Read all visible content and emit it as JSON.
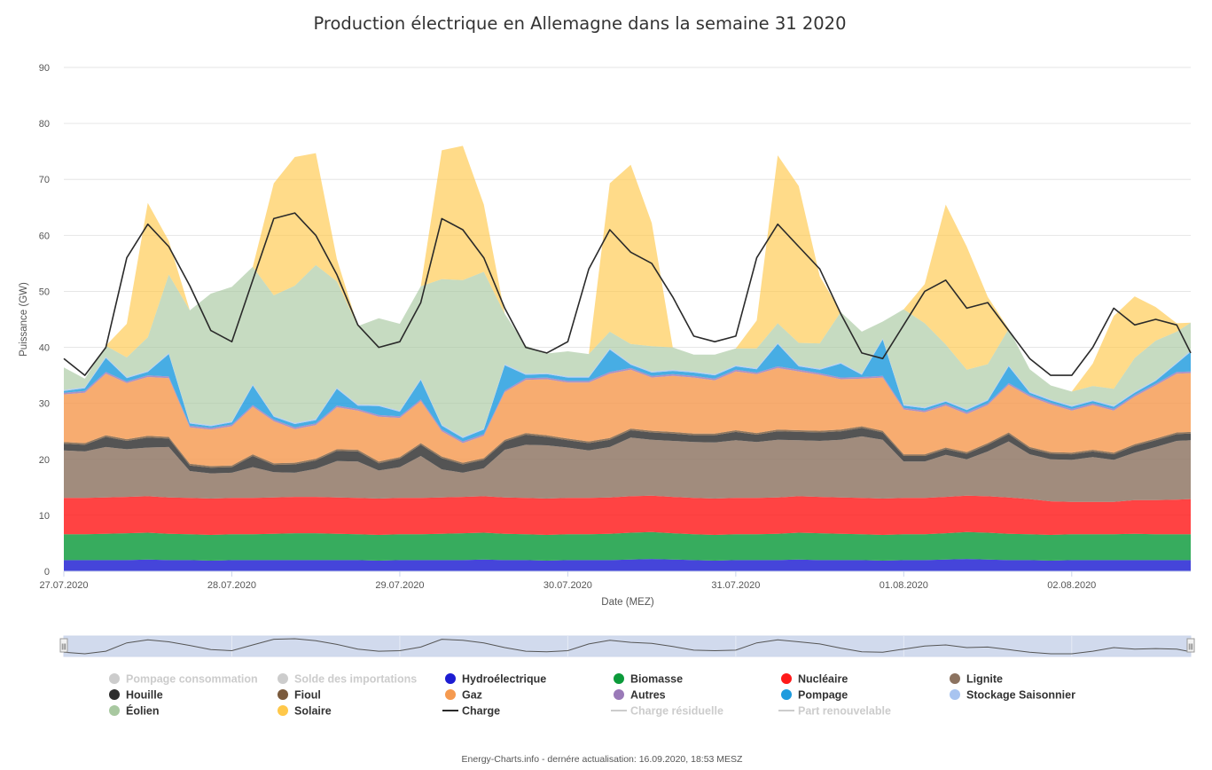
{
  "colors": {
    "pompage_consommation": "#c6c6c6",
    "solde_importations": "#c6c6c6",
    "hydro": "#1c1cd2",
    "biomasse": "#0b9a3a",
    "nucleaire": "#ff1a1a",
    "lignite": "#8c7360",
    "houille": "#2e2e2e",
    "fioul": "#7a5a3c",
    "gaz": "#f59a50",
    "autres": "#9a7ab8",
    "pompage": "#1e9bde",
    "stockage": "#a8c4f0",
    "eolien": "#a8c8a0",
    "solaire": "#ffc84a",
    "charge": "#2a2a2a",
    "disabled": "#cccccc"
  },
  "chart_data": {
    "type": "area",
    "title": "Production électrique en Allemagne dans la semaine 31 2020",
    "xlabel": "Date (MEZ)",
    "ylabel": "Puissance (GW)",
    "ylim": [
      0,
      90
    ],
    "yticks": [
      "0",
      "10",
      "20",
      "30",
      "40",
      "50",
      "60",
      "70",
      "80",
      "90"
    ],
    "xticks": [
      "27.07.2020",
      "28.07.2020",
      "29.07.2020",
      "30.07.2020",
      "31.07.2020",
      "01.08.2020",
      "02.08.2020"
    ],
    "x_hours": [
      0,
      3,
      6,
      9,
      12,
      15,
      18,
      21,
      24,
      27,
      30,
      33,
      36,
      39,
      42,
      45,
      48,
      51,
      54,
      57,
      60,
      63,
      66,
      69,
      72,
      75,
      78,
      81,
      84,
      87,
      90,
      93,
      96,
      99,
      102,
      105,
      108,
      111,
      114,
      117,
      120,
      123,
      126,
      129,
      132,
      135,
      138,
      141,
      144,
      147,
      150,
      153,
      156,
      159,
      161
    ],
    "stacked_series": [
      {
        "name": "Hydroélectrique",
        "color_key": "hydro",
        "values": [
          2.0,
          2.0,
          2.0,
          2.0,
          2.1,
          2.0,
          2.0,
          1.9,
          2.0,
          2.0,
          2.0,
          2.0,
          2.0,
          2.0,
          2.0,
          1.9,
          2.0,
          2.0,
          2.0,
          2.0,
          2.1,
          2.0,
          2.0,
          1.9,
          2.0,
          2.0,
          2.0,
          2.1,
          2.2,
          2.1,
          2.0,
          1.9,
          2.0,
          2.0,
          2.0,
          2.1,
          2.0,
          2.0,
          2.0,
          1.9,
          2.0,
          2.0,
          2.1,
          2.2,
          2.1,
          2.0,
          2.0,
          1.9,
          2.0,
          2.0,
          2.0,
          2.0,
          2.0,
          2.0,
          2.0
        ]
      },
      {
        "name": "Biomasse",
        "color_key": "biomasse",
        "values": [
          4.6,
          4.6,
          4.7,
          4.8,
          4.8,
          4.7,
          4.6,
          4.6,
          4.6,
          4.6,
          4.7,
          4.8,
          4.8,
          4.7,
          4.6,
          4.6,
          4.6,
          4.6,
          4.7,
          4.8,
          4.8,
          4.7,
          4.6,
          4.6,
          4.6,
          4.6,
          4.7,
          4.8,
          4.8,
          4.7,
          4.6,
          4.6,
          4.6,
          4.6,
          4.7,
          4.8,
          4.8,
          4.7,
          4.6,
          4.6,
          4.6,
          4.6,
          4.7,
          4.8,
          4.8,
          4.7,
          4.6,
          4.6,
          4.6,
          4.6,
          4.6,
          4.7,
          4.6,
          4.6,
          4.6
        ]
      },
      {
        "name": "Nucléaire",
        "color_key": "nucleaire",
        "values": [
          6.5,
          6.5,
          6.5,
          6.5,
          6.5,
          6.5,
          6.5,
          6.5,
          6.5,
          6.5,
          6.5,
          6.5,
          6.5,
          6.5,
          6.5,
          6.5,
          6.5,
          6.5,
          6.5,
          6.5,
          6.5,
          6.5,
          6.5,
          6.5,
          6.5,
          6.5,
          6.5,
          6.5,
          6.5,
          6.5,
          6.5,
          6.5,
          6.5,
          6.5,
          6.5,
          6.5,
          6.5,
          6.5,
          6.5,
          6.5,
          6.5,
          6.5,
          6.5,
          6.5,
          6.5,
          6.5,
          6.3,
          6.0,
          5.8,
          5.8,
          5.8,
          6.0,
          6.1,
          6.2,
          6.3
        ]
      },
      {
        "name": "Lignite",
        "color_key": "lignite",
        "values": [
          8.5,
          8.3,
          9.0,
          8.5,
          8.7,
          9.0,
          4.8,
          4.5,
          4.5,
          5.5,
          4.5,
          4.3,
          5.0,
          6.5,
          6.5,
          5.0,
          5.5,
          7.5,
          5.0,
          4.3,
          5.0,
          8.5,
          9.5,
          9.5,
          9.0,
          8.5,
          9.0,
          10.5,
          10.0,
          10.0,
          10.0,
          10.0,
          10.3,
          10.0,
          10.3,
          10.0,
          10.0,
          10.3,
          11.0,
          10.5,
          6.5,
          6.5,
          7.5,
          6.5,
          8.0,
          10.0,
          8.0,
          7.5,
          7.5,
          8.0,
          7.5,
          8.5,
          9.5,
          10.5,
          10.5
        ]
      },
      {
        "name": "Houille",
        "color_key": "houille",
        "values": [
          1.2,
          1.2,
          1.8,
          1.5,
          1.8,
          1.5,
          1.0,
          1.0,
          1.0,
          2.0,
          1.3,
          1.5,
          1.5,
          1.8,
          1.8,
          1.3,
          1.5,
          2.0,
          2.0,
          1.5,
          1.5,
          1.5,
          1.8,
          1.5,
          1.3,
          1.3,
          1.3,
          1.3,
          1.3,
          1.3,
          1.2,
          1.3,
          1.5,
          1.3,
          1.5,
          1.5,
          1.5,
          1.5,
          1.5,
          1.3,
          1.0,
          1.0,
          1.0,
          1.0,
          1.2,
          1.3,
          1.0,
          1.0,
          1.0,
          1.0,
          1.0,
          1.2,
          1.2,
          1.2,
          1.2
        ]
      },
      {
        "name": "Fioul",
        "color_key": "fioul",
        "values": [
          0.3,
          0.3,
          0.3,
          0.3,
          0.3,
          0.3,
          0.3,
          0.3,
          0.3,
          0.3,
          0.3,
          0.3,
          0.3,
          0.3,
          0.3,
          0.3,
          0.3,
          0.3,
          0.3,
          0.3,
          0.3,
          0.3,
          0.3,
          0.3,
          0.3,
          0.3,
          0.3,
          0.3,
          0.3,
          0.3,
          0.3,
          0.3,
          0.3,
          0.3,
          0.3,
          0.3,
          0.3,
          0.3,
          0.3,
          0.3,
          0.3,
          0.3,
          0.3,
          0.3,
          0.3,
          0.3,
          0.3,
          0.3,
          0.3,
          0.3,
          0.3,
          0.3,
          0.3,
          0.3,
          0.3
        ]
      },
      {
        "name": "Gaz",
        "color_key": "gaz",
        "values": [
          8.5,
          9.0,
          11.0,
          10.0,
          10.5,
          10.5,
          6.5,
          6.5,
          7.0,
          8.5,
          7.5,
          6.0,
          6.0,
          7.5,
          7.0,
          8.0,
          7.0,
          7.5,
          4.5,
          3.5,
          4.0,
          8.5,
          9.5,
          10.0,
          10.0,
          10.5,
          11.5,
          10.5,
          9.5,
          10.0,
          10.0,
          9.5,
          10.5,
          10.5,
          11.0,
          10.5,
          10.0,
          9.0,
          8.5,
          9.5,
          8.0,
          7.5,
          7.5,
          6.8,
          6.8,
          8.5,
          9.0,
          8.5,
          7.5,
          8.0,
          7.5,
          8.5,
          9.5,
          10.5,
          10.5
        ]
      },
      {
        "name": "Autres",
        "color_key": "autres",
        "values": [
          0.3,
          0.3,
          0.3,
          0.3,
          0.3,
          0.3,
          0.3,
          0.3,
          0.3,
          0.3,
          0.3,
          0.3,
          0.3,
          0.3,
          0.3,
          0.3,
          0.3,
          0.3,
          0.3,
          0.3,
          0.3,
          0.3,
          0.3,
          0.3,
          0.3,
          0.3,
          0.3,
          0.3,
          0.3,
          0.3,
          0.3,
          0.3,
          0.3,
          0.3,
          0.3,
          0.3,
          0.3,
          0.3,
          0.3,
          0.3,
          0.3,
          0.3,
          0.3,
          0.3,
          0.3,
          0.3,
          0.3,
          0.3,
          0.3,
          0.3,
          0.3,
          0.3,
          0.3,
          0.3,
          0.3
        ]
      },
      {
        "name": "Pompage",
        "color_key": "pompage",
        "values": [
          0.3,
          0.5,
          2.5,
          0.6,
          0.6,
          4.0,
          0.4,
          0.3,
          0.4,
          3.5,
          0.5,
          0.6,
          0.6,
          3.0,
          0.6,
          1.6,
          0.8,
          3.5,
          0.7,
          0.6,
          0.8,
          4.5,
          0.6,
          0.6,
          0.6,
          0.6,
          4.0,
          0.6,
          0.6,
          0.6,
          0.6,
          0.6,
          0.6,
          0.6,
          4.0,
          0.6,
          0.6,
          2.5,
          0.4,
          6.5,
          0.4,
          0.4,
          0.4,
          0.4,
          0.5,
          3.0,
          0.4,
          0.4,
          0.4,
          0.4,
          0.4,
          0.4,
          0.5,
          1.5,
          3.5
        ]
      },
      {
        "name": "Stockage Saisonnier",
        "color_key": "stockage",
        "values": [
          0.2,
          0.2,
          0.2,
          0.2,
          0.2,
          0.2,
          0.2,
          0.2,
          0.2,
          0.2,
          0.2,
          0.2,
          0.2,
          0.2,
          0.2,
          0.2,
          0.2,
          0.2,
          0.2,
          0.2,
          0.2,
          0.2,
          0.2,
          0.2,
          0.2,
          0.2,
          0.2,
          0.2,
          0.2,
          0.2,
          0.2,
          0.2,
          0.2,
          0.2,
          0.2,
          0.2,
          0.2,
          0.2,
          0.2,
          0.2,
          0.2,
          0.2,
          0.2,
          0.2,
          0.2,
          0.2,
          0.2,
          0.2,
          0.2,
          0.2,
          0.2,
          0.2,
          0.2,
          0.2,
          0.2
        ]
      },
      {
        "name": "Éolien",
        "color_key": "eolien",
        "values": [
          4.0,
          1.5,
          2.0,
          3.5,
          6.0,
          14.0,
          20.0,
          23.5,
          24.0,
          21.0,
          21.5,
          24.5,
          27.5,
          19.0,
          14.0,
          15.5,
          15.5,
          16.5,
          26.0,
          28.0,
          28.0,
          9.0,
          5.0,
          3.5,
          4.5,
          4.0,
          3.0,
          3.5,
          4.5,
          4.0,
          3.0,
          3.5,
          3.0,
          3.5,
          3.5,
          4.0,
          4.5,
          9.0,
          7.5,
          3.0,
          17.0,
          15.0,
          10.0,
          7.0,
          6.3,
          6.5,
          4.0,
          2.5,
          2.5,
          2.5,
          3.0,
          6.0,
          7.0,
          5.5,
          5.0
        ]
      },
      {
        "name": "Solaire",
        "color_key": "solaire",
        "values": [
          0,
          0,
          0,
          6.0,
          24.0,
          6.0,
          0,
          0,
          0,
          0,
          20.0,
          23.0,
          20.0,
          4.0,
          0,
          0,
          0,
          0,
          23.0,
          24.0,
          12.0,
          0,
          0,
          0,
          0,
          0,
          26.5,
          32.0,
          22.0,
          0,
          0,
          0,
          0,
          5.0,
          30.0,
          28.0,
          12.0,
          0,
          0,
          0,
          0,
          7.0,
          25.0,
          22.0,
          12.0,
          0,
          0,
          0,
          0,
          4.0,
          13.0,
          11.0,
          6.0,
          1.5,
          0
        ]
      }
    ],
    "line_series": [
      {
        "name": "Charge",
        "color_key": "charge",
        "values": [
          38,
          35,
          40,
          56,
          62,
          58,
          51,
          43,
          41,
          52,
          63,
          64,
          60,
          53,
          44,
          40,
          41,
          48,
          63,
          61,
          56,
          47,
          40,
          39,
          41,
          54,
          61,
          57,
          55,
          49,
          42,
          41,
          42,
          56,
          62,
          58,
          54,
          46,
          39,
          38,
          44,
          50,
          52,
          47,
          48,
          43,
          38,
          35,
          35,
          40,
          47,
          44,
          45,
          44,
          39
        ]
      }
    ],
    "legend": [
      {
        "name": "Pompage consommation",
        "color_key": "pompage_consommation",
        "symbol": "circle",
        "visible": false
      },
      {
        "name": "Solde des importations",
        "color_key": "solde_importations",
        "symbol": "circle",
        "visible": false
      },
      {
        "name": "Hydroélectrique",
        "color_key": "hydro",
        "symbol": "circle",
        "visible": true
      },
      {
        "name": "Biomasse",
        "color_key": "biomasse",
        "symbol": "circle",
        "visible": true
      },
      {
        "name": "Nucléaire",
        "color_key": "nucleaire",
        "symbol": "circle",
        "visible": true
      },
      {
        "name": "Lignite",
        "color_key": "lignite",
        "symbol": "circle",
        "visible": true
      },
      {
        "name": "Houille",
        "color_key": "houille",
        "symbol": "circle",
        "visible": true
      },
      {
        "name": "Fioul",
        "color_key": "fioul",
        "symbol": "circle",
        "visible": true
      },
      {
        "name": "Gaz",
        "color_key": "gaz",
        "symbol": "circle",
        "visible": true
      },
      {
        "name": "Autres",
        "color_key": "autres",
        "symbol": "circle",
        "visible": true
      },
      {
        "name": "Pompage",
        "color_key": "pompage",
        "symbol": "circle",
        "visible": true
      },
      {
        "name": "Stockage Saisonnier",
        "color_key": "stockage",
        "symbol": "circle",
        "visible": true
      },
      {
        "name": "Éolien",
        "color_key": "eolien",
        "symbol": "circle",
        "visible": true
      },
      {
        "name": "Solaire",
        "color_key": "solaire",
        "symbol": "circle",
        "visible": true
      },
      {
        "name": "Charge",
        "color_key": "charge",
        "symbol": "line",
        "visible": true
      },
      {
        "name": "Charge résiduelle",
        "color_key": "disabled",
        "symbol": "line",
        "visible": false
      },
      {
        "name": "Part renouvelable",
        "color_key": "disabled",
        "symbol": "line",
        "visible": false
      }
    ],
    "credits": "Energy-Charts.info - dernére actualisation: 16.09.2020, 18:53 MESZ",
    "navigator_handle_left": "|||",
    "navigator_handle_right": "|||"
  }
}
